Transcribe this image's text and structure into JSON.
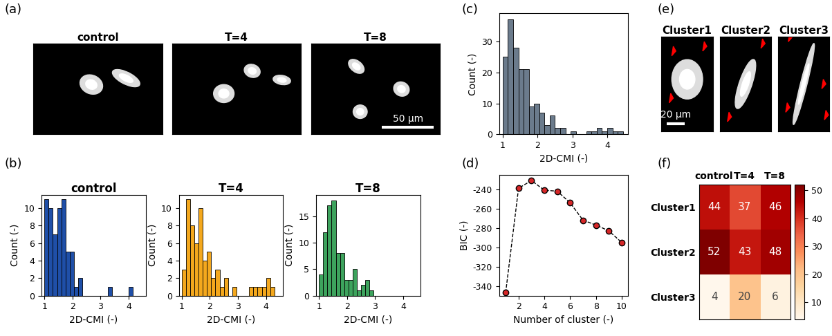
{
  "chart_data": [
    {
      "type": "image",
      "panel": "(a)",
      "titles": [
        "control",
        "T=4",
        "T=8"
      ],
      "scale_bar": "50 μm"
    },
    {
      "type": "histogram",
      "panel": "(b)",
      "title": "control",
      "x_label": "2D-CMI (-)",
      "y_label": "Count (-)",
      "color": "#1f4fa8",
      "bins": [
        1.0,
        1.15,
        1.3,
        1.45,
        1.6,
        1.75,
        1.9,
        2.05,
        2.2,
        2.35,
        2.5,
        2.65,
        2.8,
        2.95,
        3.1,
        3.25,
        3.4,
        3.55,
        3.7,
        3.85,
        4.0,
        4.15,
        4.3,
        4.45
      ],
      "values": [
        11,
        10,
        7,
        10,
        11,
        5,
        5,
        1,
        2,
        0,
        0,
        0,
        0,
        0,
        0,
        1,
        0,
        0,
        0,
        0,
        1,
        0,
        0
      ],
      "xlim": [
        0.9,
        4.6
      ],
      "xticks": [
        1,
        2,
        3,
        4
      ],
      "ylim": [
        0,
        11.5
      ],
      "yticks": [
        0,
        2,
        4,
        6,
        8,
        10
      ]
    },
    {
      "type": "histogram",
      "panel": null,
      "title": "T=4",
      "x_label": "2D-CMI (-)",
      "y_label": "Count (-)",
      "color": "#f4a81d",
      "bins": [
        1.0,
        1.15,
        1.3,
        1.45,
        1.6,
        1.75,
        1.9,
        2.05,
        2.2,
        2.35,
        2.5,
        2.65,
        2.8,
        2.95,
        3.1,
        3.25,
        3.4,
        3.55,
        3.7,
        3.85,
        4.0,
        4.15,
        4.3,
        4.45
      ],
      "values": [
        3,
        11,
        8,
        6,
        10,
        4,
        5,
        2,
        3,
        1,
        2,
        0,
        1,
        0,
        0,
        0,
        1,
        1,
        1,
        1,
        2,
        1,
        0
      ],
      "xlim": [
        0.9,
        4.6
      ],
      "xticks": [
        1,
        2,
        3,
        4
      ],
      "ylim": [
        0,
        11.5
      ],
      "yticks": [
        0,
        2,
        4,
        6,
        8,
        10
      ]
    },
    {
      "type": "histogram",
      "panel": null,
      "title": "T=8",
      "x_label": "2D-CMI (-)",
      "y_label": "Count (-)",
      "color": "#3da35d",
      "bins": [
        1.0,
        1.15,
        1.3,
        1.45,
        1.6,
        1.75,
        1.9,
        2.05,
        2.2,
        2.35,
        2.5,
        2.65,
        2.8,
        2.95,
        3.1,
        3.25,
        3.4,
        3.55,
        3.7,
        3.85,
        4.0,
        4.15,
        4.3,
        4.45
      ],
      "values": [
        4,
        12,
        17,
        18,
        8,
        8,
        3,
        3,
        5,
        1,
        2,
        3,
        1,
        0,
        0,
        0,
        0,
        0,
        0,
        0,
        0,
        0,
        0
      ],
      "xlim": [
        0.9,
        4.6
      ],
      "xticks": [
        1,
        2,
        3,
        4
      ],
      "ylim": [
        0,
        19
      ],
      "yticks": [
        0,
        5,
        10,
        15
      ]
    },
    {
      "type": "histogram",
      "panel": "(c)",
      "x_label": "2D-CMI (-)",
      "y_label": "Count (-)",
      "color": "#6b7b8c",
      "bins": [
        1.0,
        1.15,
        1.3,
        1.45,
        1.6,
        1.75,
        1.9,
        2.05,
        2.2,
        2.35,
        2.5,
        2.65,
        2.8,
        2.95,
        3.1,
        3.25,
        3.4,
        3.55,
        3.7,
        3.85,
        4.0,
        4.15,
        4.3,
        4.45
      ],
      "values": [
        25,
        37,
        28,
        21,
        21,
        9,
        10,
        7,
        3,
        6,
        2,
        2,
        0,
        1,
        0,
        0,
        1,
        1,
        2,
        1,
        2,
        1,
        1
      ],
      "xlim": [
        0.9,
        4.6
      ],
      "xticks": [
        1,
        2,
        3,
        4
      ],
      "ylim": [
        0,
        39
      ],
      "yticks": [
        0,
        10,
        20,
        30
      ]
    },
    {
      "type": "line",
      "panel": "(d)",
      "x_label": "Number of cluster (-)",
      "y_label": "BIC (-)",
      "color": "#d62728",
      "marker": "circle",
      "line_style": "dashed",
      "x": [
        1,
        2,
        3,
        4,
        5,
        6,
        7,
        8,
        9,
        10
      ],
      "values": [
        -347,
        -239,
        -231,
        -241,
        -242,
        -254,
        -272,
        -277,
        -283,
        -295
      ],
      "xlim": [
        0.5,
        10.5
      ],
      "xticks": [
        2,
        4,
        6,
        8,
        10
      ],
      "ylim": [
        -350,
        -225
      ],
      "yticks": [
        -340,
        -320,
        -300,
        -280,
        -260,
        -240
      ]
    },
    {
      "type": "image",
      "panel": "(e)",
      "titles": [
        "Cluster1",
        "Cluster2",
        "Cluster3"
      ],
      "scale_bar": "20 μm"
    },
    {
      "type": "heatmap",
      "panel": "(f)",
      "columns": [
        "control",
        "T=4",
        "T=8"
      ],
      "rows": [
        "Cluster1",
        "Cluster2",
        "Cluster3"
      ],
      "cells": [
        [
          44,
          37,
          46
        ],
        [
          52,
          43,
          48
        ],
        [
          4,
          20,
          6
        ]
      ],
      "data_labels": true,
      "colorbar": {
        "range": [
          4,
          52
        ],
        "ticks": [
          10,
          20,
          30,
          40,
          50
        ]
      }
    }
  ]
}
